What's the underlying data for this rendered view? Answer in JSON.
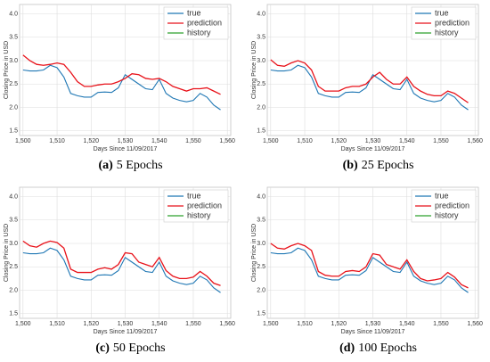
{
  "chart_data": [
    {
      "type": "line",
      "caption_label": "(a)",
      "caption": "5 Epochs",
      "xlabel": "Days Since 11/09/2017",
      "ylabel": "Closing Price in USD",
      "x": [
        1500,
        1502,
        1504,
        1506,
        1508,
        1510,
        1512,
        1514,
        1516,
        1518,
        1520,
        1522,
        1524,
        1526,
        1528,
        1530,
        1532,
        1534,
        1536,
        1538,
        1540,
        1542,
        1544,
        1546,
        1548,
        1550,
        1552,
        1554,
        1556,
        1558
      ],
      "series": [
        {
          "name": "true",
          "color": "#1f77b4",
          "values": [
            2.8,
            2.78,
            2.78,
            2.8,
            2.9,
            2.85,
            2.65,
            2.3,
            2.25,
            2.22,
            2.22,
            2.32,
            2.33,
            2.32,
            2.42,
            2.7,
            2.6,
            2.5,
            2.4,
            2.38,
            2.6,
            2.3,
            2.2,
            2.15,
            2.12,
            2.15,
            2.3,
            2.22,
            2.05,
            1.95
          ]
        },
        {
          "name": "prediction",
          "color": "#e8121a",
          "values": [
            3.12,
            3.0,
            2.92,
            2.9,
            2.92,
            2.95,
            2.92,
            2.75,
            2.55,
            2.45,
            2.45,
            2.48,
            2.5,
            2.5,
            2.55,
            2.62,
            2.72,
            2.7,
            2.62,
            2.6,
            2.62,
            2.55,
            2.45,
            2.4,
            2.35,
            2.4,
            2.4,
            2.42,
            2.35,
            2.28
          ]
        },
        {
          "name": "history",
          "color": "#2ca02c",
          "values": [
            null,
            null,
            null,
            null,
            null,
            null,
            null,
            null,
            null,
            null,
            null,
            null,
            null,
            null,
            null,
            null,
            null,
            null,
            null,
            null,
            null,
            null,
            null,
            null,
            null,
            null,
            null,
            null,
            null,
            null
          ]
        }
      ],
      "xlim": [
        1499,
        1561
      ],
      "xticks": [
        {
          "value": 1500,
          "label": "1,500"
        },
        {
          "value": 1510,
          "label": "1,510"
        },
        {
          "value": 1520,
          "label": "1,520"
        },
        {
          "value": 1530,
          "label": "1,530"
        },
        {
          "value": 1540,
          "label": "1,540"
        },
        {
          "value": 1550,
          "label": "1,550"
        },
        {
          "value": 1560,
          "label": "1,560"
        }
      ],
      "ylim": [
        1.4,
        4.2
      ],
      "yticks": [
        1.5,
        {
          "value": 2,
          "label": "2.0"
        },
        2.5,
        {
          "value": 3,
          "label": "3.0"
        },
        3.5,
        {
          "value": 4,
          "label": "4.0"
        }
      ],
      "grid": true,
      "legend": "upper right"
    },
    {
      "type": "line",
      "caption_label": "(b)",
      "caption": "25 Epochs",
      "xlabel": "Days Since 11/09/2017",
      "ylabel": "Closing Price in USD",
      "x": [
        1500,
        1502,
        1504,
        1506,
        1508,
        1510,
        1512,
        1514,
        1516,
        1518,
        1520,
        1522,
        1524,
        1526,
        1528,
        1530,
        1532,
        1534,
        1536,
        1538,
        1540,
        1542,
        1544,
        1546,
        1548,
        1550,
        1552,
        1554,
        1556,
        1558
      ],
      "series": [
        {
          "name": "true",
          "color": "#1f77b4",
          "values": [
            2.8,
            2.78,
            2.78,
            2.8,
            2.9,
            2.85,
            2.65,
            2.3,
            2.25,
            2.22,
            2.22,
            2.32,
            2.33,
            2.32,
            2.42,
            2.7,
            2.6,
            2.5,
            2.4,
            2.38,
            2.6,
            2.3,
            2.2,
            2.15,
            2.12,
            2.15,
            2.3,
            2.22,
            2.05,
            1.95
          ]
        },
        {
          "name": "prediction",
          "color": "#e8121a",
          "values": [
            3.02,
            2.9,
            2.88,
            2.95,
            3.0,
            2.95,
            2.8,
            2.45,
            2.35,
            2.35,
            2.35,
            2.42,
            2.45,
            2.45,
            2.5,
            2.65,
            2.75,
            2.6,
            2.5,
            2.5,
            2.65,
            2.45,
            2.35,
            2.28,
            2.25,
            2.25,
            2.35,
            2.3,
            2.2,
            2.1
          ]
        },
        {
          "name": "history",
          "color": "#2ca02c",
          "values": [
            null,
            null,
            null,
            null,
            null,
            null,
            null,
            null,
            null,
            null,
            null,
            null,
            null,
            null,
            null,
            null,
            null,
            null,
            null,
            null,
            null,
            null,
            null,
            null,
            null,
            null,
            null,
            null,
            null,
            null
          ]
        }
      ],
      "xlim": [
        1499,
        1561
      ],
      "xticks": [
        {
          "value": 1500,
          "label": "1,500"
        },
        {
          "value": 1510,
          "label": "1,510"
        },
        {
          "value": 1520,
          "label": "1,520"
        },
        {
          "value": 1530,
          "label": "1,530"
        },
        {
          "value": 1540,
          "label": "1,540"
        },
        {
          "value": 1550,
          "label": "1,550"
        },
        {
          "value": 1560,
          "label": "1,560"
        }
      ],
      "ylim": [
        1.4,
        4.2
      ],
      "yticks": [
        1.5,
        {
          "value": 2,
          "label": "2.0"
        },
        2.5,
        {
          "value": 3,
          "label": "3.0"
        },
        3.5,
        {
          "value": 4,
          "label": "4.0"
        }
      ],
      "grid": true,
      "legend": "upper right"
    },
    {
      "type": "line",
      "caption_label": "(c)",
      "caption": "50 Epochs",
      "xlabel": "Days Since 11/09/2017",
      "ylabel": "Closing Price in USD",
      "x": [
        1500,
        1502,
        1504,
        1506,
        1508,
        1510,
        1512,
        1514,
        1516,
        1518,
        1520,
        1522,
        1524,
        1526,
        1528,
        1530,
        1532,
        1534,
        1536,
        1538,
        1540,
        1542,
        1544,
        1546,
        1548,
        1550,
        1552,
        1554,
        1556,
        1558
      ],
      "series": [
        {
          "name": "true",
          "color": "#1f77b4",
          "values": [
            2.8,
            2.78,
            2.78,
            2.8,
            2.9,
            2.85,
            2.65,
            2.3,
            2.25,
            2.22,
            2.22,
            2.32,
            2.33,
            2.32,
            2.42,
            2.7,
            2.6,
            2.5,
            2.4,
            2.38,
            2.6,
            2.3,
            2.2,
            2.15,
            2.12,
            2.15,
            2.3,
            2.22,
            2.05,
            1.95
          ]
        },
        {
          "name": "prediction",
          "color": "#e8121a",
          "values": [
            3.05,
            2.95,
            2.92,
            3.0,
            3.05,
            3.02,
            2.9,
            2.45,
            2.38,
            2.38,
            2.38,
            2.45,
            2.48,
            2.45,
            2.55,
            2.8,
            2.78,
            2.6,
            2.55,
            2.5,
            2.7,
            2.42,
            2.3,
            2.25,
            2.25,
            2.28,
            2.4,
            2.3,
            2.15,
            2.1
          ]
        },
        {
          "name": "history",
          "color": "#2ca02c",
          "values": [
            null,
            null,
            null,
            null,
            null,
            null,
            null,
            null,
            null,
            null,
            null,
            null,
            null,
            null,
            null,
            null,
            null,
            null,
            null,
            null,
            null,
            null,
            null,
            null,
            null,
            null,
            null,
            null,
            null,
            null
          ]
        }
      ],
      "xlim": [
        1499,
        1561
      ],
      "xticks": [
        {
          "value": 1500,
          "label": "1,500"
        },
        {
          "value": 1510,
          "label": "1,510"
        },
        {
          "value": 1520,
          "label": "1,520"
        },
        {
          "value": 1530,
          "label": "1,530"
        },
        {
          "value": 1540,
          "label": "1,540"
        },
        {
          "value": 1550,
          "label": "1,550"
        },
        {
          "value": 1560,
          "label": "1,560"
        }
      ],
      "ylim": [
        1.4,
        4.2
      ],
      "yticks": [
        1.5,
        {
          "value": 2,
          "label": "2.0"
        },
        2.5,
        {
          "value": 3,
          "label": "3.0"
        },
        3.5,
        {
          "value": 4,
          "label": "4.0"
        }
      ],
      "grid": true,
      "legend": "upper right"
    },
    {
      "type": "line",
      "caption_label": "(d)",
      "caption": "100 Epochs",
      "xlabel": "Days Since 11/09/2017",
      "ylabel": "Closing Price in USD",
      "x": [
        1500,
        1502,
        1504,
        1506,
        1508,
        1510,
        1512,
        1514,
        1516,
        1518,
        1520,
        1522,
        1524,
        1526,
        1528,
        1530,
        1532,
        1534,
        1536,
        1538,
        1540,
        1542,
        1544,
        1546,
        1548,
        1550,
        1552,
        1554,
        1556,
        1558
      ],
      "series": [
        {
          "name": "true",
          "color": "#1f77b4",
          "values": [
            2.8,
            2.78,
            2.78,
            2.8,
            2.9,
            2.85,
            2.65,
            2.3,
            2.25,
            2.22,
            2.22,
            2.32,
            2.33,
            2.32,
            2.42,
            2.7,
            2.6,
            2.5,
            2.4,
            2.38,
            2.6,
            2.3,
            2.2,
            2.15,
            2.12,
            2.15,
            2.3,
            2.22,
            2.05,
            1.95
          ]
        },
        {
          "name": "prediction",
          "color": "#e8121a",
          "values": [
            3.0,
            2.9,
            2.88,
            2.95,
            3.0,
            2.95,
            2.85,
            2.4,
            2.32,
            2.3,
            2.3,
            2.4,
            2.42,
            2.4,
            2.5,
            2.78,
            2.75,
            2.55,
            2.5,
            2.45,
            2.65,
            2.4,
            2.25,
            2.2,
            2.22,
            2.25,
            2.38,
            2.28,
            2.12,
            2.05
          ]
        },
        {
          "name": "history",
          "color": "#2ca02c",
          "values": [
            null,
            null,
            null,
            null,
            null,
            null,
            null,
            null,
            null,
            null,
            null,
            null,
            null,
            null,
            null,
            null,
            null,
            null,
            null,
            null,
            null,
            null,
            null,
            null,
            null,
            null,
            null,
            null,
            null,
            null
          ]
        }
      ],
      "xlim": [
        1499,
        1561
      ],
      "xticks": [
        {
          "value": 1500,
          "label": "1,500"
        },
        {
          "value": 1510,
          "label": "1,510"
        },
        {
          "value": 1520,
          "label": "1,520"
        },
        {
          "value": 1530,
          "label": "1,530"
        },
        {
          "value": 1540,
          "label": "1,540"
        },
        {
          "value": 1550,
          "label": "1,550"
        },
        {
          "value": 1560,
          "label": "1,560"
        }
      ],
      "ylim": [
        1.4,
        4.2
      ],
      "yticks": [
        1.5,
        {
          "value": 2,
          "label": "2.0"
        },
        2.5,
        {
          "value": 3,
          "label": "3.0"
        },
        3.5,
        {
          "value": 4,
          "label": "4.0"
        }
      ],
      "grid": true,
      "legend": "upper right"
    }
  ]
}
